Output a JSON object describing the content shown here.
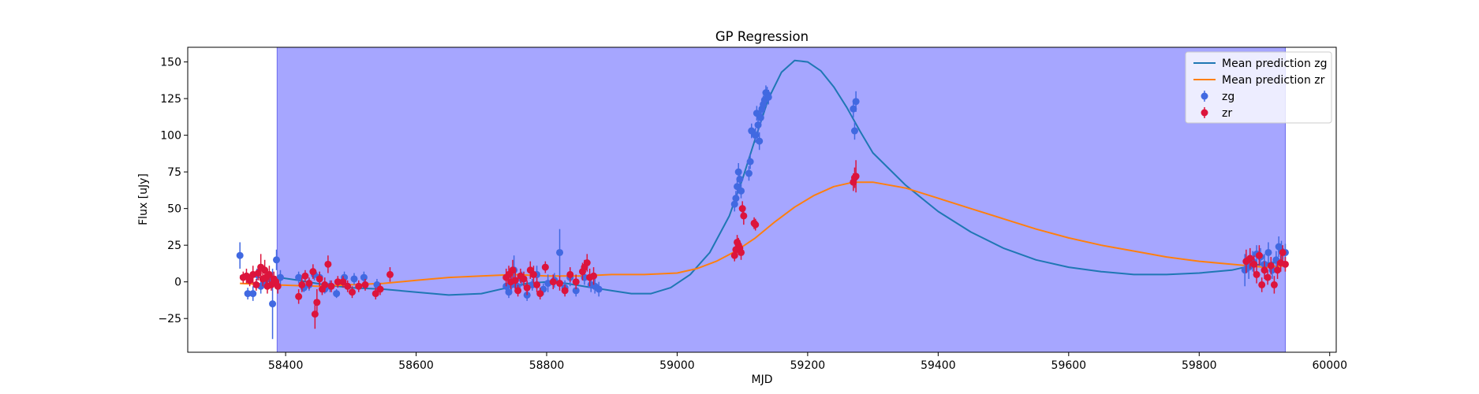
{
  "chart_data": {
    "type": "scatter",
    "title": "GP Regression",
    "xlabel": "MJD",
    "ylabel": "Flux [uJy]",
    "xlim": [
      58250,
      60010
    ],
    "ylim": [
      -48,
      160
    ],
    "xticks": [
      58400,
      58600,
      58800,
      59000,
      59200,
      59400,
      59600,
      59800,
      60000
    ],
    "yticks": [
      -25,
      0,
      25,
      50,
      75,
      100,
      125,
      150
    ],
    "grid": false,
    "legend_position": "top-right",
    "shaded_region": {
      "x_start": 58387,
      "x_end": 59932,
      "color": "#a6a6ff"
    },
    "lines": [
      {
        "name": "Mean prediction zg",
        "color": "#1f77b4",
        "points": [
          [
            58330,
            4
          ],
          [
            58350,
            4
          ],
          [
            58370,
            2
          ],
          [
            58390,
            3
          ],
          [
            58420,
            1
          ],
          [
            58460,
            -2
          ],
          [
            58500,
            -4
          ],
          [
            58550,
            -5
          ],
          [
            58600,
            -7
          ],
          [
            58650,
            -9
          ],
          [
            58700,
            -8
          ],
          [
            58740,
            -4
          ],
          [
            58770,
            -1
          ],
          [
            58800,
            0
          ],
          [
            58830,
            -1
          ],
          [
            58870,
            -4
          ],
          [
            58900,
            -6
          ],
          [
            58930,
            -8
          ],
          [
            58960,
            -8
          ],
          [
            58990,
            -4
          ],
          [
            59020,
            5
          ],
          [
            59050,
            20
          ],
          [
            59080,
            45
          ],
          [
            59100,
            70
          ],
          [
            59120,
            98
          ],
          [
            59140,
            125
          ],
          [
            59160,
            143
          ],
          [
            59180,
            151
          ],
          [
            59200,
            150
          ],
          [
            59220,
            144
          ],
          [
            59240,
            133
          ],
          [
            59260,
            119
          ],
          [
            59280,
            103
          ],
          [
            59300,
            88
          ],
          [
            59350,
            66
          ],
          [
            59400,
            48
          ],
          [
            59450,
            34
          ],
          [
            59500,
            23
          ],
          [
            59550,
            15
          ],
          [
            59600,
            10
          ],
          [
            59650,
            7
          ],
          [
            59700,
            5
          ],
          [
            59750,
            5
          ],
          [
            59800,
            6
          ],
          [
            59850,
            8
          ],
          [
            59880,
            11
          ],
          [
            59910,
            13
          ],
          [
            59932,
            13
          ]
        ]
      },
      {
        "name": "Mean prediction zr",
        "color": "#ff7f0e",
        "points": [
          [
            58330,
            -1
          ],
          [
            58380,
            -2
          ],
          [
            58450,
            -3
          ],
          [
            58500,
            -2
          ],
          [
            58550,
            -1
          ],
          [
            58600,
            1
          ],
          [
            58650,
            3
          ],
          [
            58700,
            4
          ],
          [
            58750,
            5
          ],
          [
            58800,
            4
          ],
          [
            58850,
            4
          ],
          [
            58900,
            5
          ],
          [
            58950,
            5
          ],
          [
            59000,
            6
          ],
          [
            59030,
            9
          ],
          [
            59060,
            14
          ],
          [
            59090,
            21
          ],
          [
            59120,
            30
          ],
          [
            59150,
            41
          ],
          [
            59180,
            51
          ],
          [
            59210,
            59
          ],
          [
            59240,
            65
          ],
          [
            59270,
            68
          ],
          [
            59300,
            68
          ],
          [
            59350,
            64
          ],
          [
            59400,
            57
          ],
          [
            59450,
            50
          ],
          [
            59500,
            43
          ],
          [
            59550,
            36
          ],
          [
            59600,
            30
          ],
          [
            59650,
            25
          ],
          [
            59700,
            21
          ],
          [
            59750,
            17
          ],
          [
            59800,
            14
          ],
          [
            59850,
            12
          ],
          [
            59900,
            10
          ],
          [
            59932,
            11
          ]
        ]
      }
    ],
    "series": [
      {
        "name": "zg",
        "color": "#4169e1",
        "points": [
          [
            58330,
            18,
            9
          ],
          [
            58342,
            -8,
            4
          ],
          [
            58350,
            -8,
            5
          ],
          [
            58356,
            5,
            4
          ],
          [
            58362,
            -3,
            5
          ],
          [
            58368,
            0,
            4
          ],
          [
            58375,
            2,
            5
          ],
          [
            58380,
            -15,
            24
          ],
          [
            58386,
            15,
            7
          ],
          [
            58392,
            3,
            5
          ],
          [
            58420,
            3,
            4
          ],
          [
            58428,
            -4,
            3
          ],
          [
            58436,
            -2,
            4
          ],
          [
            58444,
            5,
            4
          ],
          [
            58452,
            3,
            4
          ],
          [
            58460,
            -5,
            3
          ],
          [
            58468,
            -3,
            4
          ],
          [
            58478,
            -8,
            3
          ],
          [
            58490,
            3,
            4
          ],
          [
            58505,
            2,
            4
          ],
          [
            58520,
            3,
            4
          ],
          [
            58540,
            -2,
            4
          ],
          [
            58738,
            -3,
            5
          ],
          [
            58742,
            -7,
            4
          ],
          [
            58746,
            -2,
            6
          ],
          [
            58750,
            8,
            10
          ],
          [
            58755,
            -3,
            4
          ],
          [
            58762,
            2,
            5
          ],
          [
            58770,
            -9,
            4
          ],
          [
            58778,
            -2,
            4
          ],
          [
            58785,
            5,
            6
          ],
          [
            58795,
            -5,
            4
          ],
          [
            58802,
            -1,
            6
          ],
          [
            58812,
            1,
            5
          ],
          [
            58820,
            20,
            16
          ],
          [
            58828,
            -4,
            5
          ],
          [
            58836,
            3,
            6
          ],
          [
            58845,
            -6,
            4
          ],
          [
            58858,
            3,
            5
          ],
          [
            58868,
            -2,
            5
          ],
          [
            58874,
            -3,
            5
          ],
          [
            58880,
            -5,
            5
          ],
          [
            59088,
            53,
            5
          ],
          [
            59090,
            57,
            5
          ],
          [
            59092,
            65,
            6
          ],
          [
            59094,
            75,
            6
          ],
          [
            59096,
            70,
            5
          ],
          [
            59098,
            62,
            5
          ],
          [
            59110,
            74,
            5
          ],
          [
            59112,
            82,
            5
          ],
          [
            59114,
            103,
            5
          ],
          [
            59120,
            100,
            5
          ],
          [
            59122,
            115,
            5
          ],
          [
            59124,
            107,
            6
          ],
          [
            59126,
            96,
            6
          ],
          [
            59128,
            112,
            5
          ],
          [
            59130,
            118,
            6
          ],
          [
            59132,
            121,
            6
          ],
          [
            59134,
            124,
            6
          ],
          [
            59136,
            129,
            5
          ],
          [
            59138,
            128,
            5
          ],
          [
            59140,
            126,
            5
          ],
          [
            59270,
            118,
            6
          ],
          [
            59272,
            103,
            6
          ],
          [
            59274,
            123,
            7
          ],
          [
            59870,
            8,
            11
          ],
          [
            59876,
            10,
            8
          ],
          [
            59882,
            14,
            7
          ],
          [
            59888,
            19,
            6
          ],
          [
            59894,
            17,
            6
          ],
          [
            59900,
            12,
            7
          ],
          [
            59906,
            20,
            7
          ],
          [
            59912,
            8,
            6
          ],
          [
            59918,
            15,
            6
          ],
          [
            59922,
            24,
            7
          ],
          [
            59926,
            21,
            7
          ],
          [
            59932,
            20,
            6
          ]
        ]
      },
      {
        "name": "zr",
        "color": "#dc143c",
        "points": [
          [
            58335,
            3,
            4
          ],
          [
            58340,
            4,
            5
          ],
          [
            58345,
            1,
            4
          ],
          [
            58350,
            5,
            6
          ],
          [
            58355,
            -2,
            4
          ],
          [
            58358,
            6,
            5
          ],
          [
            58362,
            10,
            9
          ],
          [
            58365,
            2,
            5
          ],
          [
            58368,
            8,
            7
          ],
          [
            58370,
            3,
            5
          ],
          [
            58372,
            -3,
            5
          ],
          [
            58375,
            5,
            6
          ],
          [
            58378,
            -2,
            4
          ],
          [
            58382,
            2,
            5
          ],
          [
            58385,
            0,
            4
          ],
          [
            58388,
            -3,
            5
          ],
          [
            58420,
            -10,
            5
          ],
          [
            58425,
            -2,
            5
          ],
          [
            58430,
            4,
            4
          ],
          [
            58436,
            -1,
            4
          ],
          [
            58442,
            7,
            5
          ],
          [
            58445,
            -22,
            10
          ],
          [
            58448,
            -14,
            9
          ],
          [
            58452,
            2,
            5
          ],
          [
            58456,
            -5,
            4
          ],
          [
            58460,
            -2,
            5
          ],
          [
            58465,
            12,
            6
          ],
          [
            58470,
            -3,
            4
          ],
          [
            58480,
            0,
            4
          ],
          [
            58488,
            0,
            4
          ],
          [
            58495,
            -3,
            4
          ],
          [
            58502,
            -7,
            4
          ],
          [
            58512,
            -3,
            4
          ],
          [
            58522,
            -2,
            4
          ],
          [
            58538,
            -8,
            4
          ],
          [
            58545,
            -5,
            4
          ],
          [
            58560,
            5,
            5
          ],
          [
            58738,
            3,
            6
          ],
          [
            58742,
            5,
            6
          ],
          [
            58745,
            0,
            5
          ],
          [
            58748,
            8,
            7
          ],
          [
            58752,
            1,
            6
          ],
          [
            58756,
            -6,
            4
          ],
          [
            58760,
            4,
            5
          ],
          [
            58765,
            2,
            5
          ],
          [
            58770,
            -4,
            5
          ],
          [
            58775,
            8,
            6
          ],
          [
            58780,
            5,
            6
          ],
          [
            58785,
            -2,
            5
          ],
          [
            58790,
            -8,
            4
          ],
          [
            58798,
            10,
            4
          ],
          [
            58810,
            0,
            5
          ],
          [
            58820,
            -1,
            5
          ],
          [
            58828,
            -6,
            4
          ],
          [
            58836,
            5,
            5
          ],
          [
            58845,
            0,
            5
          ],
          [
            58855,
            7,
            6
          ],
          [
            58858,
            10,
            5
          ],
          [
            58862,
            13,
            6
          ],
          [
            58866,
            3,
            6
          ],
          [
            58872,
            4,
            6
          ],
          [
            59088,
            18,
            4
          ],
          [
            59090,
            22,
            5
          ],
          [
            59092,
            27,
            5
          ],
          [
            59094,
            25,
            5
          ],
          [
            59096,
            23,
            5
          ],
          [
            59098,
            20,
            5
          ],
          [
            59100,
            50,
            5
          ],
          [
            59102,
            45,
            6
          ],
          [
            59118,
            40,
            4
          ],
          [
            59120,
            39,
            4
          ],
          [
            59270,
            68,
            6
          ],
          [
            59272,
            71,
            7
          ],
          [
            59274,
            72,
            11
          ],
          [
            59872,
            14,
            8
          ],
          [
            59878,
            16,
            7
          ],
          [
            59884,
            12,
            6
          ],
          [
            59888,
            5,
            6
          ],
          [
            59892,
            18,
            7
          ],
          [
            59896,
            -2,
            5
          ],
          [
            59900,
            8,
            6
          ],
          [
            59905,
            3,
            5
          ],
          [
            59910,
            11,
            6
          ],
          [
            59915,
            -2,
            6
          ],
          [
            59920,
            8,
            6
          ],
          [
            59925,
            13,
            6
          ],
          [
            59928,
            20,
            5
          ],
          [
            59932,
            12,
            5
          ]
        ]
      }
    ]
  }
}
